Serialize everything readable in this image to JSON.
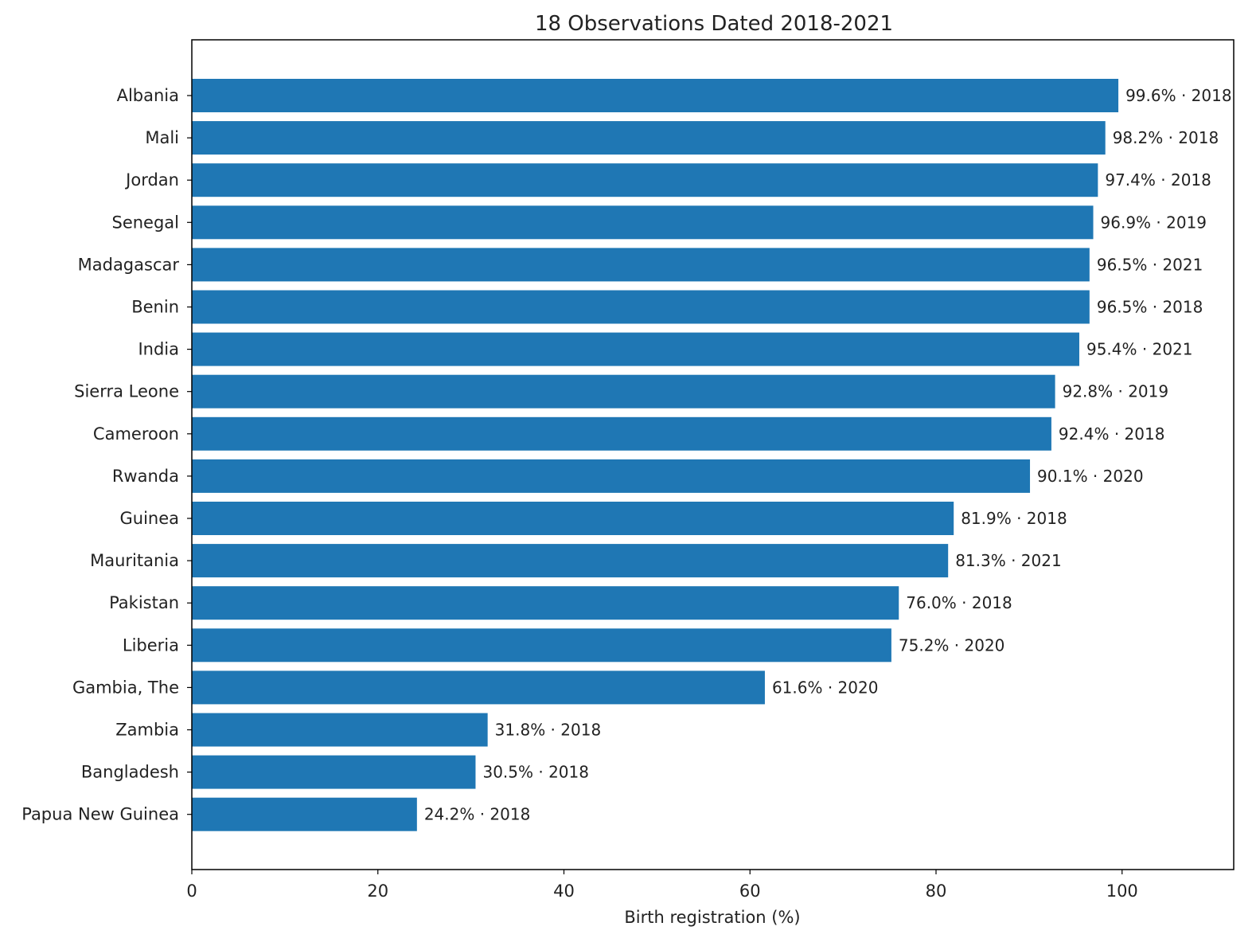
{
  "chart_data": {
    "type": "bar",
    "orientation": "horizontal",
    "title": "18 Observations Dated 2018-2021",
    "xlabel": "Birth registration (%)",
    "ylabel": "",
    "xlim": [
      0,
      112
    ],
    "xticks": [
      "0",
      "20",
      "40",
      "60",
      "80",
      "100"
    ],
    "bar_color": "#1f77b4",
    "grid": false,
    "categories": [
      "Albania",
      "Mali",
      "Jordan",
      "Senegal",
      "Madagascar",
      "Benin",
      "India",
      "Sierra Leone",
      "Cameroon",
      "Rwanda",
      "Guinea",
      "Mauritania",
      "Pakistan",
      "Liberia",
      "Gambia, The",
      "Zambia",
      "Bangladesh",
      "Papua New Guinea"
    ],
    "values": [
      99.6,
      98.2,
      97.4,
      96.9,
      96.5,
      96.5,
      95.4,
      92.8,
      92.4,
      90.1,
      81.9,
      81.3,
      76.0,
      75.2,
      61.6,
      31.8,
      30.5,
      24.2
    ],
    "years": [
      "2018",
      "2018",
      "2018",
      "2019",
      "2021",
      "2018",
      "2021",
      "2019",
      "2018",
      "2020",
      "2018",
      "2021",
      "2018",
      "2020",
      "2020",
      "2018",
      "2018",
      "2018"
    ],
    "data_labels": [
      "99.6% · 2018",
      "98.2% · 2018",
      "97.4% · 2018",
      "96.9% · 2019",
      "96.5% · 2021",
      "96.5% · 2018",
      "95.4% · 2021",
      "92.8% · 2019",
      "92.4% · 2018",
      "90.1% · 2020",
      "81.9% · 2018",
      "81.3% · 2021",
      "76.0% · 2018",
      "75.2% · 2020",
      "61.6% · 2020",
      "31.8% · 2018",
      "30.5% · 2018",
      "24.2% · 2018"
    ]
  }
}
